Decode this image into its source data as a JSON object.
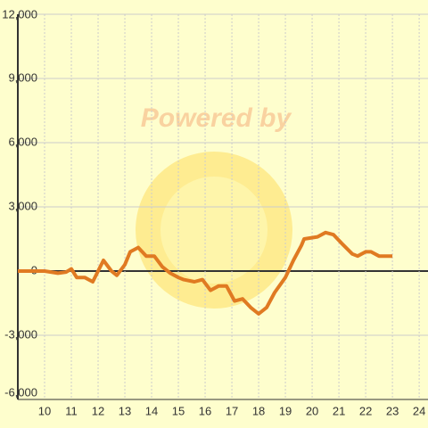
{
  "chart_data": {
    "type": "line",
    "watermark": "Powered by",
    "x": [
      9,
      10,
      10.5,
      10.8,
      11,
      11.2,
      11.5,
      11.8,
      12,
      12.2,
      12.5,
      12.7,
      13,
      13.2,
      13.5,
      13.8,
      14.1,
      14.4,
      14.7,
      15,
      15.2,
      15.4,
      15.6,
      15.9,
      16.2,
      16.5,
      16.8,
      17.1,
      17.4,
      17.7,
      18,
      18.3,
      18.6,
      19,
      19.3,
      19.6,
      19.7,
      20.2,
      20.5,
      20.8,
      21.1,
      21.5,
      21.7,
      22,
      22.2,
      22.5,
      23
    ],
    "values": [
      0,
      0,
      -100,
      -50,
      100,
      -300,
      -300,
      -500,
      0,
      500,
      0,
      -200,
      300,
      900,
      1100,
      700,
      700,
      200,
      -100,
      -300,
      -400,
      -450,
      -500,
      -400,
      -900,
      -700,
      -700,
      -1400,
      -1300,
      -1700,
      -2000,
      -1700,
      -1000,
      -300,
      500,
      1200,
      1500,
      1600,
      1800,
      1700,
      1300,
      800,
      700,
      900,
      900,
      700,
      700
    ],
    "color": "#e07a22",
    "xlim": [
      9,
      24.33
    ],
    "xticks": [
      10,
      11,
      12,
      13,
      14,
      15,
      16,
      17,
      18,
      19,
      20,
      21,
      22,
      23,
      24
    ],
    "ylim": [
      -6000,
      12000
    ],
    "yticks": [
      {
        "value": -6000,
        "label": "-6,000"
      },
      {
        "value": -3000,
        "label": "-3,000"
      },
      0,
      {
        "value": 3000,
        "label": "3,000"
      },
      {
        "value": 6000,
        "label": "6,000"
      },
      {
        "value": 9000,
        "label": "9,000"
      },
      {
        "value": 12000,
        "label": "12,000"
      }
    ],
    "grid": true
  }
}
